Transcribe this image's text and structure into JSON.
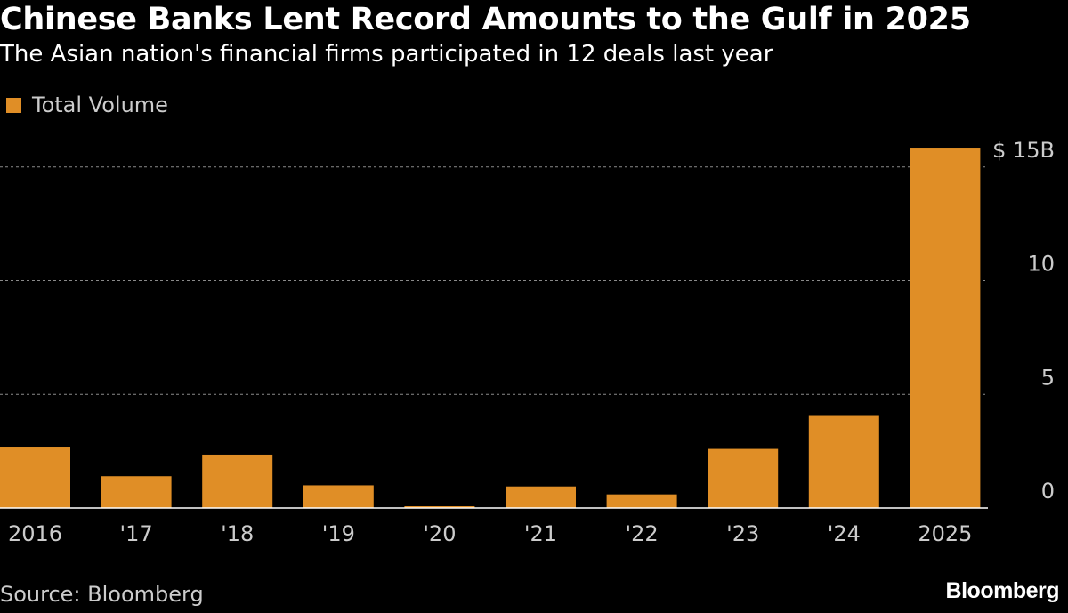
{
  "header": {
    "title": "Chinese Banks Lent Record Amounts to the Gulf in 2025",
    "subtitle": "The Asian nation's financial firms participated in 12 deals last year"
  },
  "footer": {
    "source": "Source: Bloomberg",
    "logo": "Bloomberg"
  },
  "colors": {
    "background": "#000000",
    "bar": "#e08e26",
    "grid": "#8a8a8a",
    "axis": "#ffffff",
    "text": "#cccccc"
  },
  "chart_data": {
    "type": "bar",
    "title": "Chinese Banks Lent Record Amounts to the Gulf in 2025",
    "subtitle": "The Asian nation's financial firms participated in 12 deals last year",
    "categories": [
      "2016",
      "'17",
      "'18",
      "'19",
      "'20",
      "'21",
      "'22",
      "'23",
      "'24",
      "2025"
    ],
    "series": [
      {
        "name": "Total Volume",
        "values": [
          2.7,
          1.4,
          2.35,
          1.0,
          0.05,
          0.95,
          0.6,
          2.6,
          4.05,
          15.85
        ]
      }
    ],
    "ylim": [
      0,
      15
    ],
    "yticks": [
      0,
      5,
      10,
      15
    ],
    "ytick_labels": [
      "0",
      "5",
      "10",
      "$ 15B"
    ],
    "yaxis_position": "right",
    "legend_position": "top-left",
    "grid": true
  }
}
